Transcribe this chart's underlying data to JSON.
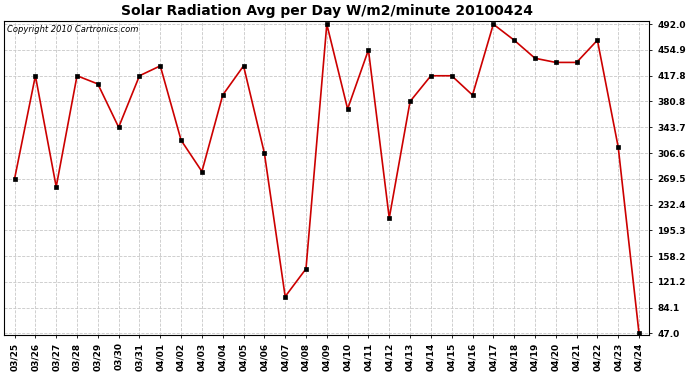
{
  "title": "Solar Radiation Avg per Day W/m2/minute 20100424",
  "copyright": "Copyright 2010 Cartronics.com",
  "labels": [
    "03/25",
    "03/26",
    "03/27",
    "03/28",
    "03/29",
    "03/30",
    "03/31",
    "04/01",
    "04/02",
    "04/03",
    "04/04",
    "04/05",
    "04/06",
    "04/07",
    "04/08",
    "04/09",
    "04/10",
    "04/11",
    "04/12",
    "04/13",
    "04/14",
    "04/15",
    "04/16",
    "04/17",
    "04/18",
    "04/19",
    "04/20",
    "04/21",
    "04/22",
    "04/23",
    "04/24"
  ],
  "values": [
    269.5,
    417.8,
    258.0,
    417.8,
    406.0,
    343.7,
    417.8,
    432.0,
    325.0,
    280.0,
    390.0,
    432.0,
    306.6,
    100.0,
    140.0,
    492.0,
    370.0,
    455.0,
    213.0,
    380.8,
    417.8,
    417.8,
    390.0,
    492.0,
    469.0,
    443.0,
    437.0,
    437.0,
    469.0,
    315.0,
    47.0
  ],
  "line_color": "#cc0000",
  "marker_color": "#000000",
  "bg_color": "#ffffff",
  "grid_color": "#c8c8c8",
  "yticks": [
    47.0,
    84.1,
    121.2,
    158.2,
    195.3,
    232.4,
    269.5,
    306.6,
    343.7,
    380.8,
    417.8,
    454.9,
    492.0
  ],
  "ymin": 47.0,
  "ymax": 492.0,
  "title_fontsize": 10,
  "tick_fontsize": 6.5
}
